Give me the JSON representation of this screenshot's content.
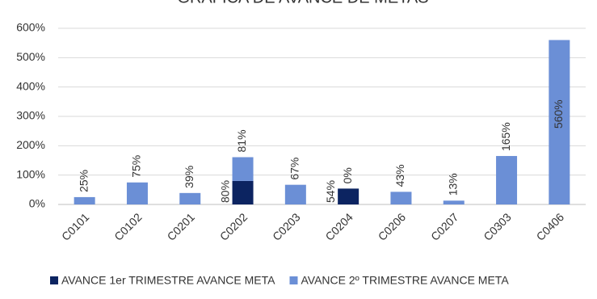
{
  "chart_data": {
    "type": "stacked-bar",
    "title": "GRÁFICA DE AVANCE DE METAS",
    "categories": [
      "C0101",
      "C0102",
      "C0201",
      "C0202",
      "C0203",
      "C0204",
      "C0206",
      "C0207",
      "C0303",
      "C0406"
    ],
    "series": [
      {
        "name": "AVANCE 1er TRIMESTRE AVANCE META",
        "color": "#0c2461",
        "values": [
          null,
          null,
          null,
          80,
          null,
          54,
          null,
          null,
          null,
          null
        ],
        "value_labels": [
          null,
          null,
          null,
          "80%",
          null,
          "54%",
          null,
          null,
          null,
          null
        ]
      },
      {
        "name": "AVANCE 2º TRIMESTRE AVANCE META",
        "color": "#6b8fd6",
        "values": [
          25,
          75,
          39,
          81,
          67,
          0,
          43,
          13,
          165,
          560
        ],
        "value_labels": [
          "25%",
          "75%",
          "39%",
          "81%",
          "67%",
          "0%",
          "43%",
          "13%",
          "165%",
          "560%"
        ]
      }
    ],
    "ylim": [
      0,
      600
    ],
    "yticks": [
      {
        "value": 0,
        "label": "0%"
      },
      {
        "value": 100,
        "label": "100%"
      },
      {
        "value": 200,
        "label": "200%"
      },
      {
        "value": 300,
        "label": "300%"
      },
      {
        "value": 400,
        "label": "400%"
      },
      {
        "value": 500,
        "label": "500%"
      },
      {
        "value": 600,
        "label": "600%"
      }
    ],
    "grid": true,
    "legend": "bottom"
  }
}
